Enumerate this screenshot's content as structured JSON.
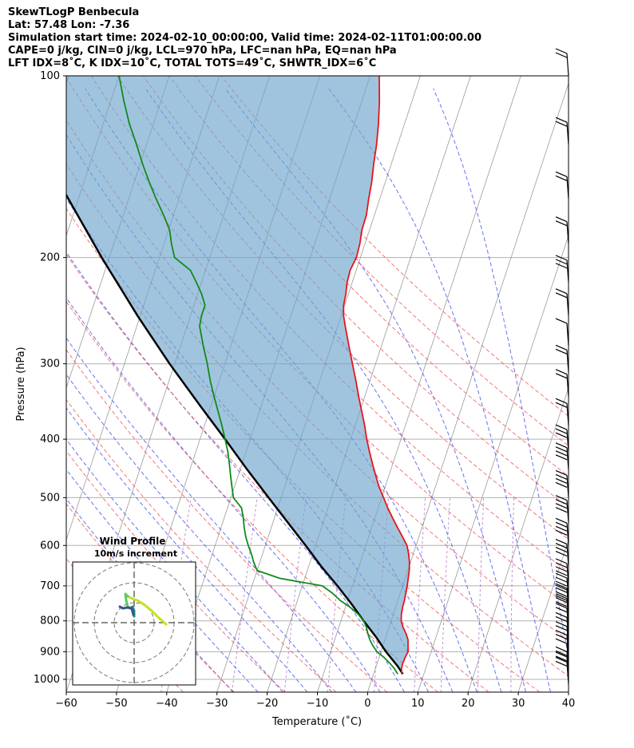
{
  "header": {
    "line1": "SkewTLogP Benbecula",
    "line2": "Lat: 57.48   Lon: -7.36",
    "line3": "Simulation start time: 2024-02-10_00:00:00, Valid time: 2024-02-11T01:00:00.00",
    "line4": "CAPE=0 j/kg, CIN=0 j/kg, LCL=970 hPa, LFC=nan hPa, EQ=nan hPa",
    "line5": "LFT IDX=8˚C, K IDX=10˚C, TOTAL TOTS=49˚C, SHWTR_IDX=6˚C"
  },
  "axes": {
    "xlabel": "Temperature (˚C)",
    "ylabel": "Pressure (hPa)"
  },
  "hodograph": {
    "title": "Wind Profile",
    "subtitle": "10m/s increment"
  },
  "colors": {
    "temperature": "#e8141a",
    "dewpoint": "#118a1a",
    "parcel": "#000000",
    "cape_fill": "#6fa4cc",
    "dry_adiabat": "#f04b4b",
    "moist_adiabat": "#3344ee",
    "mixing_ratio": "#9944bb",
    "isotherm": "#9a9a9a"
  },
  "chart_data": {
    "type": "skewt",
    "title": "SkewTLogP Benbecula",
    "xlabel": "Temperature (˚C)",
    "ylabel": "Pressure (hPa)",
    "xlim": [
      -60,
      40
    ],
    "ylim": [
      1050,
      100
    ],
    "yscale": "log",
    "x_ticks": [
      -60,
      -50,
      -40,
      -30,
      -20,
      -10,
      0,
      10,
      20,
      30,
      40
    ],
    "y_ticks": [
      1000,
      900,
      800,
      700,
      600,
      500,
      400,
      300,
      200,
      100
    ],
    "grid": true,
    "series": [
      {
        "name": "Temperature",
        "pressure": [
          980,
          960,
          940,
          920,
          900,
          880,
          860,
          840,
          820,
          800,
          780,
          760,
          740,
          720,
          700,
          680,
          660,
          640,
          620,
          600,
          580,
          560,
          540,
          520,
          500,
          480,
          460,
          440,
          420,
          400,
          380,
          360,
          340,
          320,
          300,
          280,
          260,
          250,
          240,
          230,
          220,
          210,
          200,
          190,
          180,
          170,
          160,
          150,
          140,
          130,
          120,
          110,
          100
        ],
        "values": [
          5.6,
          5.2,
          5.1,
          5.2,
          5.4,
          5.0,
          4.6,
          3.8,
          2.8,
          2.0,
          1.6,
          1.4,
          1.3,
          1.1,
          0.9,
          0.6,
          0.3,
          -0.2,
          -0.9,
          -1.8,
          -3.3,
          -4.9,
          -6.5,
          -8.1,
          -9.6,
          -11.2,
          -12.6,
          -14.0,
          -15.4,
          -16.8,
          -18.1,
          -19.6,
          -21.2,
          -22.8,
          -24.6,
          -26.5,
          -28.5,
          -29.5,
          -30.2,
          -30.5,
          -31.0,
          -31.2,
          -30.8,
          -31.0,
          -31.5,
          -31.6,
          -32.2,
          -32.7,
          -33.5,
          -34.2,
          -35.2,
          -36.5,
          -38.2
        ]
      },
      {
        "name": "Dewpoint",
        "pressure": [
          980,
          960,
          940,
          920,
          900,
          880,
          860,
          840,
          820,
          800,
          780,
          760,
          740,
          720,
          700,
          680,
          660,
          640,
          620,
          600,
          580,
          560,
          540,
          520,
          500,
          480,
          460,
          440,
          420,
          400,
          380,
          360,
          340,
          320,
          300,
          280,
          260,
          250,
          240,
          230,
          220,
          210,
          200,
          190,
          180,
          170,
          160,
          150,
          140,
          130,
          120,
          110,
          100
        ],
        "values": [
          4.8,
          3.8,
          2.5,
          1.0,
          -0.8,
          -2.0,
          -3.0,
          -3.8,
          -4.5,
          -5.5,
          -7.0,
          -9.0,
          -11.5,
          -13.5,
          -16.0,
          -25.0,
          -30.0,
          -31.2,
          -32.2,
          -33.4,
          -34.5,
          -35.4,
          -36.2,
          -37.2,
          -39.5,
          -40.5,
          -41.5,
          -42.5,
          -43.6,
          -45.0,
          -46.5,
          -48.2,
          -50.0,
          -51.8,
          -53.5,
          -55.5,
          -57.5,
          -57.8,
          -57.8,
          -59.2,
          -61.0,
          -63.0,
          -67.0,
          -68.5,
          -69.8,
          -72.0,
          -74.5,
          -77.0,
          -79.5,
          -82.0,
          -84.8,
          -87.4,
          -90.0
        ]
      },
      {
        "name": "Parcel",
        "pressure": [
          980,
          970,
          950,
          900,
          850,
          800,
          750,
          700,
          650,
          600,
          550,
          500,
          450,
          400,
          350,
          300,
          250,
          200,
          150,
          100
        ],
        "values": [
          5.8,
          5.3,
          4.2,
          1.0,
          -2.0,
          -5.5,
          -9.0,
          -13.0,
          -17.5,
          -22.0,
          -27.0,
          -32.5,
          -38.5,
          -45.0,
          -52.5,
          -61.0,
          -70.5,
          -81.5,
          -95.0,
          -114.0
        ]
      }
    ],
    "shading": "CAPE/CIN area between temperature and parcel profile",
    "wind_barbs": {
      "pressure": [
        100,
        130,
        160,
        190,
        220,
        250,
        280,
        310,
        340,
        380,
        420,
        450,
        500,
        550,
        600,
        650,
        700,
        740,
        770,
        800,
        830,
        860,
        890,
        920,
        950,
        980,
        1000,
        1020
      ],
      "speed_kt": [
        15,
        20,
        20,
        15,
        30,
        20,
        10,
        15,
        20,
        20,
        30,
        35,
        35,
        40,
        40,
        40,
        45,
        40,
        35,
        25,
        20,
        20,
        20,
        15,
        10,
        15,
        20,
        15
      ]
    }
  }
}
